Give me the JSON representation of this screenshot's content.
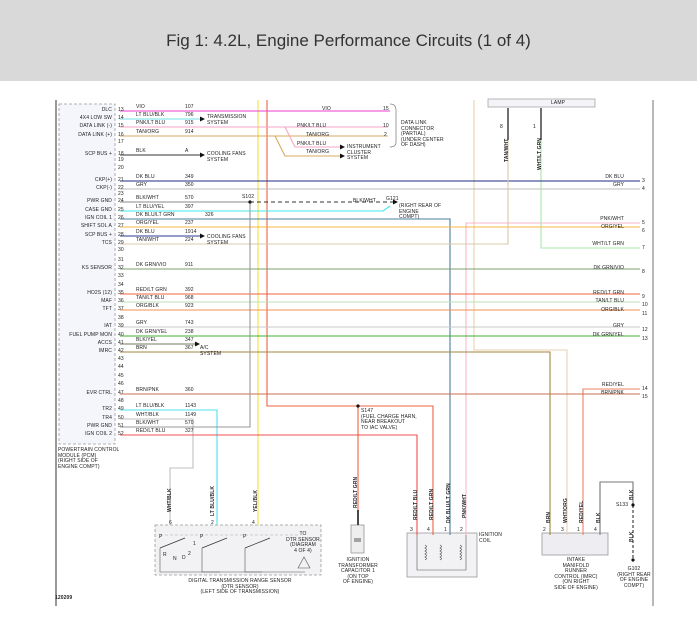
{
  "header": {
    "title": "Fig 1: 4.2L, Engine Performance Circuits (1 of 4)"
  },
  "pcm": {
    "label": "POWERTRAIN CONTROL\nMODULE (PCM)\n(RIGHT SIDE OF\nENGINE COMPT)",
    "pins": [
      {
        "pin": "13",
        "function": "DLC",
        "wire": "VIO",
        "circuit": "107",
        "color": "#e83ecf"
      },
      {
        "pin": "14",
        "function": "4X4 LOW SW",
        "wire": "LT BLU/BLK",
        "circuit": "796",
        "color": "#6fe0e8"
      },
      {
        "pin": "15",
        "function": "DATA LINK (-)",
        "wire": "PNK/LT BLU",
        "circuit": "915",
        "color": "#f4a6c8"
      },
      {
        "pin": "16",
        "function": "DATA LINK (+)",
        "wire": "TAN/ORG",
        "circuit": "914",
        "color": "#d9a860"
      },
      {
        "pin": "17"
      },
      {
        "pin": "18",
        "function": "SCP BUS +",
        "wire": "BLK",
        "circuit": "A",
        "color": "#333333"
      },
      {
        "pin": "19"
      },
      {
        "pin": "20"
      },
      {
        "pin": "21",
        "function": "CKP(+)",
        "wire": "DK BLU",
        "circuit": "349",
        "color": "#1a2d80"
      },
      {
        "pin": "22",
        "function": "CKP(-)",
        "wire": "GRY",
        "circuit": "350",
        "color": "#bbbbbb"
      },
      {
        "pin": "23"
      },
      {
        "pin": "24",
        "function": "PWR GND",
        "wire": "BLK/WHT",
        "circuit": "570",
        "color": "#8a8a8a"
      },
      {
        "pin": "25",
        "function": "CASE GND",
        "wire": "LT BLU/YEL",
        "circuit": "397",
        "color": "#40e8e8"
      },
      {
        "pin": "26",
        "function": "IGN COIL 1",
        "wire": "DK BLU/LT GRN",
        "circuit": "326",
        "color": "#4a7fa0"
      },
      {
        "pin": "27",
        "function": "SHIFT SOL A",
        "wire": "ORG/YEL",
        "circuit": "237",
        "color": "#f7b740"
      },
      {
        "pin": "28",
        "function": "SCP BUS +",
        "wire": "DK BLU",
        "circuit": "1914",
        "color": "#2a3a90"
      },
      {
        "pin": "29",
        "function": "TCS",
        "wire": "TAN/WHT",
        "circuit": "224",
        "color": "#d8c8a8"
      },
      {
        "pin": "30"
      },
      {
        "pin": "31"
      },
      {
        "pin": "32",
        "function": "KS SENSOR",
        "wire": "DK GRN/VIO",
        "circuit": "911",
        "color": "#7aa070"
      },
      {
        "pin": "33"
      },
      {
        "pin": "34"
      },
      {
        "pin": "35",
        "function": "HO2S (12)",
        "wire": "RED/LT GRN",
        "circuit": "392",
        "color": "#f06040"
      },
      {
        "pin": "36",
        "function": "MAF",
        "wire": "TAN/LT BLU",
        "circuit": "968",
        "color": "#b8e0b8"
      },
      {
        "pin": "37",
        "function": "TFT",
        "wire": "ORG/BLK",
        "circuit": "923",
        "color": "#f09050"
      },
      {
        "pin": "38"
      },
      {
        "pin": "39",
        "function": "IAT",
        "wire": "GRY",
        "circuit": "743",
        "color": "#c8c8c8"
      },
      {
        "pin": "40",
        "function": "FUEL PUMP MON",
        "wire": "DK GRN/YEL",
        "circuit": "238",
        "color": "#40b030"
      },
      {
        "pin": "41",
        "function": "ACCS",
        "wire": "BLK/YEL",
        "circuit": "347",
        "color": "#777760"
      },
      {
        "pin": "42",
        "function": "IMRC",
        "wire": "BRN",
        "circuit": "367",
        "color": "#a08840"
      },
      {
        "pin": "43"
      },
      {
        "pin": "44"
      },
      {
        "pin": "45"
      },
      {
        "pin": "46"
      },
      {
        "pin": "47",
        "function": "EVR CTRL",
        "wire": "BRN/PNK",
        "circuit": "360",
        "color": "#c87050"
      },
      {
        "pin": "48"
      },
      {
        "pin": "49",
        "function": "TR2",
        "wire": "LT BLU/BLK",
        "circuit": "1143",
        "color": "#50e0f0"
      },
      {
        "pin": "50",
        "function": "TR4",
        "wire": "WHT/BLK",
        "circuit": "1149",
        "color": "#c0c0c0"
      },
      {
        "pin": "51",
        "function": "PWR GND",
        "wire": "BLK/WHT",
        "circuit": "570",
        "color": "#999999"
      },
      {
        "pin": "52",
        "function": "IGN COIL 2",
        "wire": "RED/LT BLU",
        "circuit": "327",
        "color": "#f05050"
      }
    ]
  },
  "right_pins": [
    {
      "pin": "3",
      "wire": "DK BLU",
      "color": "#1a2d80"
    },
    {
      "pin": "4",
      "wire": "GRY",
      "color": "#bbbbbb"
    },
    {
      "pin": "5",
      "wire": "PNK/WHT",
      "color": "#f8b8c8"
    },
    {
      "pin": "6",
      "wire": "ORG/YEL",
      "color": "#f7b740"
    },
    {
      "pin": "7",
      "wire": "WHT/LT GRN",
      "color": "#a8e8a8"
    },
    {
      "pin": "8",
      "wire": "DK GRN/VIO",
      "color": "#7aa070"
    },
    {
      "pin": "9",
      "wire": "RED/LT GRN",
      "color": "#f06040"
    },
    {
      "pin": "10",
      "wire": "TAN/LT BLU",
      "color": "#b8e0b8"
    },
    {
      "pin": "11",
      "wire": "ORG/BLK",
      "color": "#f09050"
    },
    {
      "pin": "12",
      "wire": "GRY",
      "color": "#c8c8c8"
    },
    {
      "pin": "13",
      "wire": "DK GRN/YEL",
      "color": "#40b030"
    },
    {
      "pin": "14",
      "wire": "RED/YEL",
      "color": "#f07050"
    },
    {
      "pin": "15",
      "wire": "BRN/PNK",
      "color": "#c87050"
    }
  ],
  "extra_colors": {
    "yellow": "#f0e040",
    "red": "#f06040",
    "tan": "#e8d0b0",
    "peach": "#f0c8a8",
    "pink": "#f8b8c8",
    "wht_lt_grn": "#a8e8a8",
    "tan_wht": "#d0c0a0",
    "blk": "#777777",
    "red_yel": "#f08060"
  },
  "destinations": {
    "transmission": "TRANSMISSION\nSYSTEM",
    "cooling_fans_1": "COOLING FANS\nSYSTEM",
    "cooling_fans_2": "COOLING FANS\nSYSTEM",
    "ac": "A/C\nSYSTEM",
    "instrument_cluster": "INSTRUMENT\nCLUSTER\nSYSTEM"
  },
  "dlc": {
    "label": "DATA LINK\nCONNECTOR\n(PARTIAL)\n(UNDER CENTER\nOF DASH)",
    "pins": [
      "15",
      "10",
      "2"
    ],
    "wires": [
      "VIO",
      "PNK/LT BLU",
      "TAN/ORG"
    ],
    "branch_wires": [
      "PNK/LT BLU",
      "TAN/ORG"
    ]
  },
  "splices": {
    "s102": "S102",
    "g121": "G121",
    "g121_loc": "(RIGHT REAR OF\nENGINE\nCOMPT)",
    "g121_wire": "BLK/WHT",
    "s147": "S147\n(FUEL CHARGE HARN,\nNEAR BREAKOUT\nTO IAC VALVE)",
    "s133": "S133",
    "g102": "G102\n(RIGHT REAR\nOF ENGINE\nCOMPT)"
  },
  "lamp": {
    "label": "LAMP",
    "pins": [
      "8",
      "1"
    ],
    "wires": [
      "TAN/WHT",
      "WHT/LT GRN"
    ]
  },
  "dtr": {
    "label": "DIGITAL TRANSMISSION RANGE SENSOR\n(DTR SENSOR)\n(LEFT SIDE OF TRANSMISSION)",
    "note": "TO\nDTR SENSOR\n(DIAGRAM\n4 OF 4)",
    "pins": [
      "6",
      "2",
      "4"
    ],
    "wires": [
      "WHT/BLK",
      "LT BLU/BLK",
      "YEL/BLK"
    ],
    "switch_labels": [
      "P",
      "R",
      "N",
      "D",
      "2",
      "1"
    ]
  },
  "capacitor": {
    "label": "IGNITION\nTRANSFORMER\nCAPACITOR 1\n(ON TOP\nOF ENGINE)",
    "wire": "RED/LT GRN"
  },
  "coil": {
    "label": "IGNITION\nCOIL",
    "pins": [
      "3",
      "4",
      "1",
      "2"
    ],
    "wires": [
      "RED/LT BLU",
      "RED/LT GRN",
      "DK BLU/LT GRN",
      "PNK/WHT"
    ]
  },
  "imrc": {
    "label": "INTAKE\nMANIFOLD\nRUNNER\nCONTROL (IMRC)\n(ON RIGHT\nSIDE OF ENGINE)",
    "pins": [
      "2",
      "3",
      "1",
      "4"
    ],
    "wires": [
      "BRN",
      "WHT/ORG",
      "RED/YEL",
      "BLK"
    ]
  },
  "g102_wires": [
    "BLK",
    "BLK"
  ],
  "figure_code": "120209"
}
